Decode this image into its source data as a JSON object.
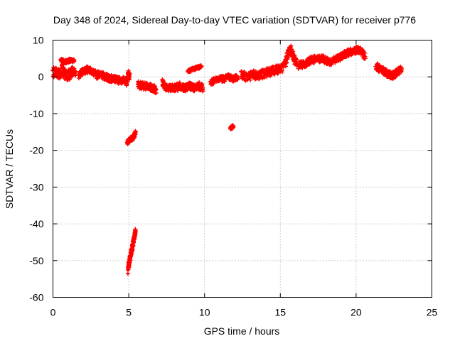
{
  "chart_data": {
    "type": "scatter",
    "title": "Day 348 of 2024, Sidereal Day-to-day VTEC variation (SDTVAR) for receiver p776",
    "xlabel": "GPS time / hours",
    "ylabel": "SDTVAR / TECUs",
    "xlim": [
      0,
      25
    ],
    "ylim": [
      -60,
      10
    ],
    "xticks": [
      0,
      5,
      10,
      15,
      20,
      25
    ],
    "yticks": [
      10,
      0,
      -10,
      -20,
      -30,
      -40,
      -50,
      -60
    ],
    "xtick_labels": [
      "0",
      "5",
      "10",
      "15",
      "20",
      "25"
    ],
    "ytick_labels": [
      "10",
      "0",
      "-10",
      "-20",
      "-30",
      "-40",
      "-50",
      "-60"
    ],
    "grid": true,
    "marker": "+",
    "series": [
      {
        "name": "SDTVAR",
        "color": "#ff0000",
        "segments": [
          {
            "x": [
              0.0,
              0.3,
              0.6,
              0.9,
              1.2,
              1.5
            ],
            "y": [
              1.5,
              0.5,
              2.0,
              0.0,
              1.0,
              1.5
            ],
            "spread": 1.5
          },
          {
            "x": [
              0.5,
              0.8,
              1.1,
              1.4
            ],
            "y": [
              4.5,
              4.0,
              4.5,
              4.2
            ],
            "spread": 0.5
          },
          {
            "x": [
              1.7,
              2.0,
              2.3,
              2.6,
              2.9,
              3.2,
              3.5,
              3.8,
              4.1,
              4.4,
              4.7,
              4.9
            ],
            "y": [
              0.5,
              1.5,
              2.0,
              1.5,
              0.5,
              0.5,
              0.0,
              -0.5,
              -0.5,
              -1.0,
              -1.0,
              -1.5
            ],
            "spread": 1.0
          },
          {
            "x": [
              4.95,
              5.05
            ],
            "y": [
              1.0,
              0.0
            ],
            "spread": 1.0
          },
          {
            "x": [
              4.9,
              5.1,
              5.3,
              5.45
            ],
            "y": [
              -18.0,
              -17.0,
              -16.5,
              -15.0
            ],
            "spread": 0.6
          },
          {
            "x": [
              4.95,
              5.05,
              5.15,
              5.25,
              5.35,
              5.45
            ],
            "y": [
              -53.0,
              -50.0,
              -48.0,
              -46.0,
              -44.0,
              -42.0
            ],
            "spread": 0.8
          },
          {
            "x": [
              5.6,
              5.9,
              6.2,
              6.5,
              6.8
            ],
            "y": [
              -2.0,
              -2.5,
              -2.5,
              -3.0,
              -3.5
            ],
            "spread": 1.0
          },
          {
            "x": [
              7.2,
              7.5,
              7.8,
              8.1,
              8.4,
              8.7,
              9.0,
              9.3,
              9.6,
              9.9
            ],
            "y": [
              -1.5,
              -3.0,
              -3.0,
              -3.0,
              -2.5,
              -3.0,
              -2.5,
              -3.0,
              -2.5,
              -3.0
            ],
            "spread": 1.0
          },
          {
            "x": [
              8.9,
              9.2,
              9.5,
              9.8
            ],
            "y": [
              1.5,
              2.0,
              2.5,
              2.8
            ],
            "spread": 0.4
          },
          {
            "x": [
              10.4,
              10.7,
              11.0,
              11.3,
              11.6,
              11.9,
              12.2
            ],
            "y": [
              -1.5,
              -1.0,
              -0.5,
              -0.5,
              0.0,
              -0.5,
              0.0
            ],
            "spread": 0.8
          },
          {
            "x": [
              11.7,
              11.9
            ],
            "y": [
              -14.0,
              -13.5
            ],
            "spread": 0.5
          },
          {
            "x": [
              12.4,
              12.8,
              13.2,
              13.6,
              14.0,
              14.4,
              14.8,
              15.2
            ],
            "y": [
              0.5,
              0.0,
              0.5,
              0.5,
              1.0,
              1.5,
              2.0,
              2.5
            ],
            "spread": 1.2
          },
          {
            "x": [
              15.3,
              15.5,
              15.7,
              15.9,
              16.1
            ],
            "y": [
              3.0,
              6.5,
              7.5,
              5.0,
              3.5
            ],
            "spread": 1.2
          },
          {
            "x": [
              16.2,
              16.6,
              17.0,
              17.4,
              17.8,
              18.2,
              18.6,
              19.0,
              19.4,
              19.8,
              20.2,
              20.6
            ],
            "y": [
              3.0,
              3.5,
              4.5,
              5.0,
              5.0,
              4.0,
              4.5,
              5.5,
              6.5,
              7.0,
              7.5,
              5.5
            ],
            "spread": 1.0
          },
          {
            "x": [
              21.3,
              21.6,
              21.9,
              22.2,
              22.5,
              22.8,
              23.0
            ],
            "y": [
              3.0,
              2.0,
              1.5,
              0.5,
              0.5,
              1.5,
              2.0
            ],
            "spread": 1.0
          }
        ]
      }
    ]
  }
}
